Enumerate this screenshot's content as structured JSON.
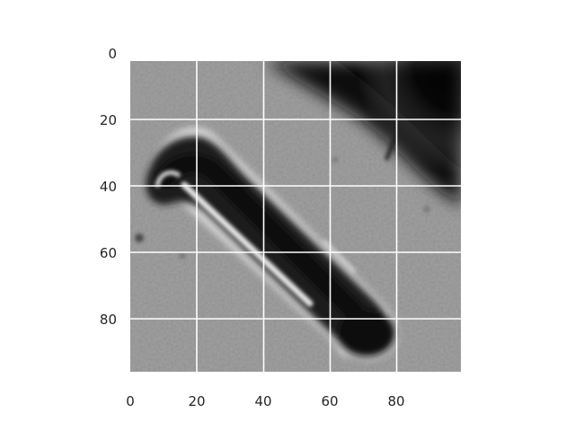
{
  "image": {
    "subject": "microscope-cell",
    "grid": true,
    "grid_color": "#ffffff",
    "colormap": "gray",
    "x_range": [
      0,
      99
    ],
    "y_range": [
      0,
      93
    ],
    "y_inverted": true
  },
  "axes": {
    "x_ticks": [
      "0",
      "20",
      "40",
      "60",
      "80"
    ],
    "x_tick_values": [
      0,
      20,
      40,
      60,
      80
    ],
    "y_ticks": [
      "0",
      "20",
      "40",
      "60",
      "80"
    ],
    "y_tick_values": [
      0,
      20,
      40,
      60,
      80
    ]
  }
}
